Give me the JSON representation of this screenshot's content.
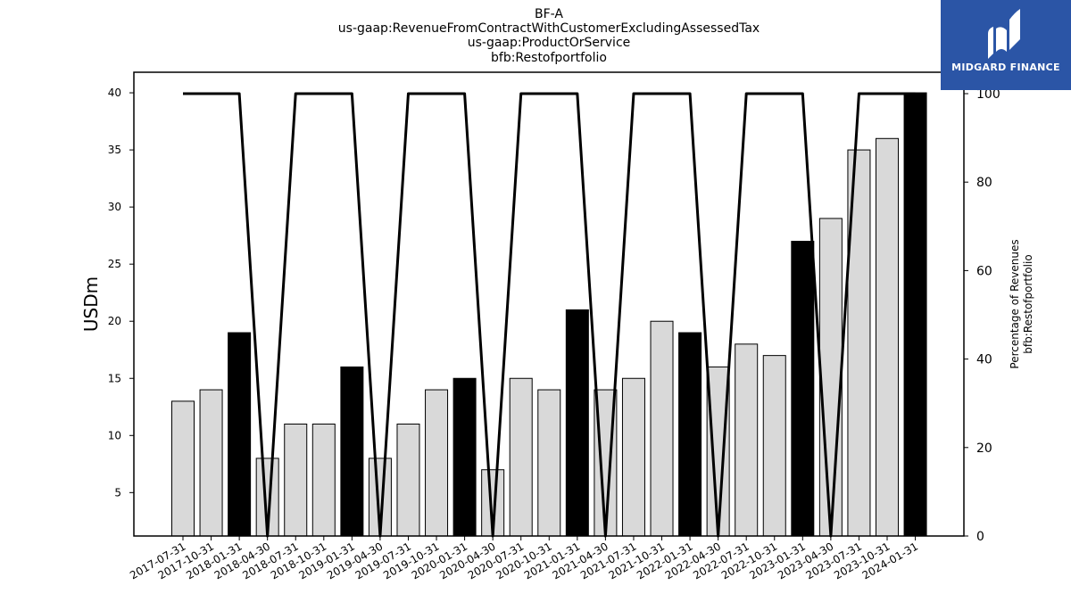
{
  "title_lines": [
    "BF-A",
    "us-gaap:RevenueFromContractWithCustomerExcludingAssessedTax",
    "us-gaap:ProductOrService",
    "bfb:Restofportfolio"
  ],
  "logo": {
    "text": "MIDGARD FINANCE"
  },
  "colors": {
    "bar_highlight": "#000000",
    "bar_default": "#d9d9d9",
    "line": "#000000",
    "logo_bg": "#2b55a6"
  },
  "chart_data": {
    "type": "bar",
    "categories": [
      "2017-07-31",
      "2017-10-31",
      "2018-01-31",
      "2018-04-30",
      "2018-07-31",
      "2018-10-31",
      "2019-01-31",
      "2019-04-30",
      "2019-07-31",
      "2019-10-31",
      "2020-01-31",
      "2020-04-30",
      "2020-07-31",
      "2020-10-31",
      "2021-01-31",
      "2021-04-30",
      "2021-07-31",
      "2021-10-31",
      "2022-01-31",
      "2022-04-30",
      "2022-07-31",
      "2022-10-31",
      "2023-01-31",
      "2023-04-30",
      "2023-07-31",
      "2023-10-31",
      "2024-01-31"
    ],
    "values": [
      13,
      14,
      19,
      8,
      11,
      11,
      16,
      8,
      11,
      14,
      15,
      7,
      15,
      14,
      21,
      14,
      15,
      20,
      19,
      16,
      18,
      17,
      27,
      29,
      35,
      36,
      40
    ],
    "highlighted": [
      false,
      false,
      true,
      false,
      false,
      false,
      true,
      false,
      false,
      false,
      true,
      false,
      false,
      false,
      true,
      false,
      false,
      false,
      true,
      false,
      false,
      false,
      true,
      false,
      false,
      false,
      true
    ],
    "ylabel": "USDm",
    "ylim": [
      1.2,
      41.8
    ],
    "yticks": [
      5,
      10,
      15,
      20,
      25,
      30,
      35,
      40
    ],
    "secondary_axis": {
      "label_lines": [
        "Percentage of Revenues",
        "bfb:Restofportfolio"
      ],
      "ylim": [
        0,
        100
      ],
      "yticks": [
        0,
        20,
        40,
        60,
        80,
        100
      ],
      "series": {
        "type": "line",
        "values": [
          100,
          100,
          100,
          0,
          100,
          100,
          100,
          0,
          100,
          100,
          100,
          0,
          100,
          100,
          100,
          0,
          100,
          100,
          100,
          0,
          100,
          100,
          100,
          0,
          100,
          100,
          100
        ]
      }
    },
    "grid": false
  }
}
